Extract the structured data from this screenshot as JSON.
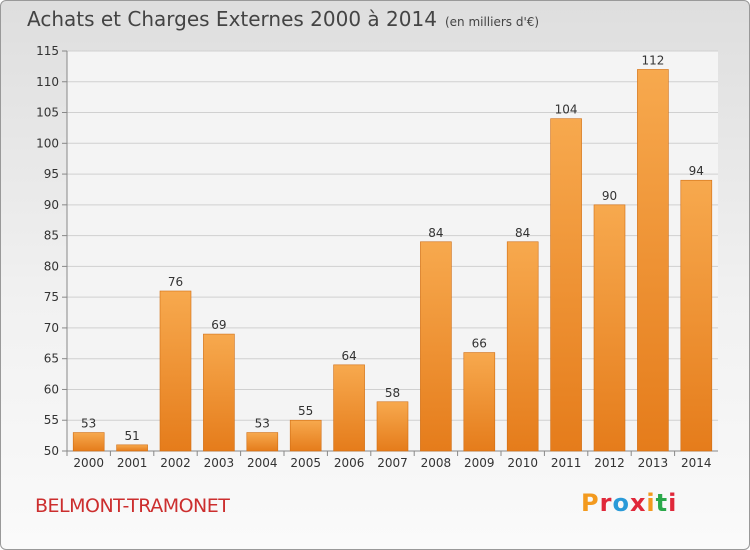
{
  "header": {
    "title": "Achats et Charges Externes 2000 à 2014",
    "unit": "(en milliers d'€)"
  },
  "footer": {
    "place": "BELMONT-TRAMONET",
    "brand": "Proxiti",
    "brand_colors": [
      "#f39a1e",
      "#e0283a",
      "#2a9ad8",
      "#e0283a",
      "#f39a1e",
      "#2aa84a",
      "#e0283a"
    ]
  },
  "chart_data": {
    "type": "bar",
    "title": "Achats et Charges Externes 2000 à 2014",
    "xlabel": "",
    "ylabel": "",
    "categories": [
      "2000",
      "2001",
      "2002",
      "2003",
      "2004",
      "2005",
      "2006",
      "2007",
      "2008",
      "2009",
      "2010",
      "2011",
      "2012",
      "2013",
      "2014"
    ],
    "values": [
      53,
      51,
      76,
      69,
      53,
      55,
      64,
      58,
      84,
      66,
      84,
      104,
      90,
      112,
      94
    ],
    "ylim": [
      50,
      115
    ],
    "yticks": [
      50,
      55,
      60,
      65,
      70,
      75,
      80,
      85,
      90,
      95,
      100,
      105,
      110,
      115
    ],
    "grid": true,
    "bar_color": "#f09a3c"
  }
}
